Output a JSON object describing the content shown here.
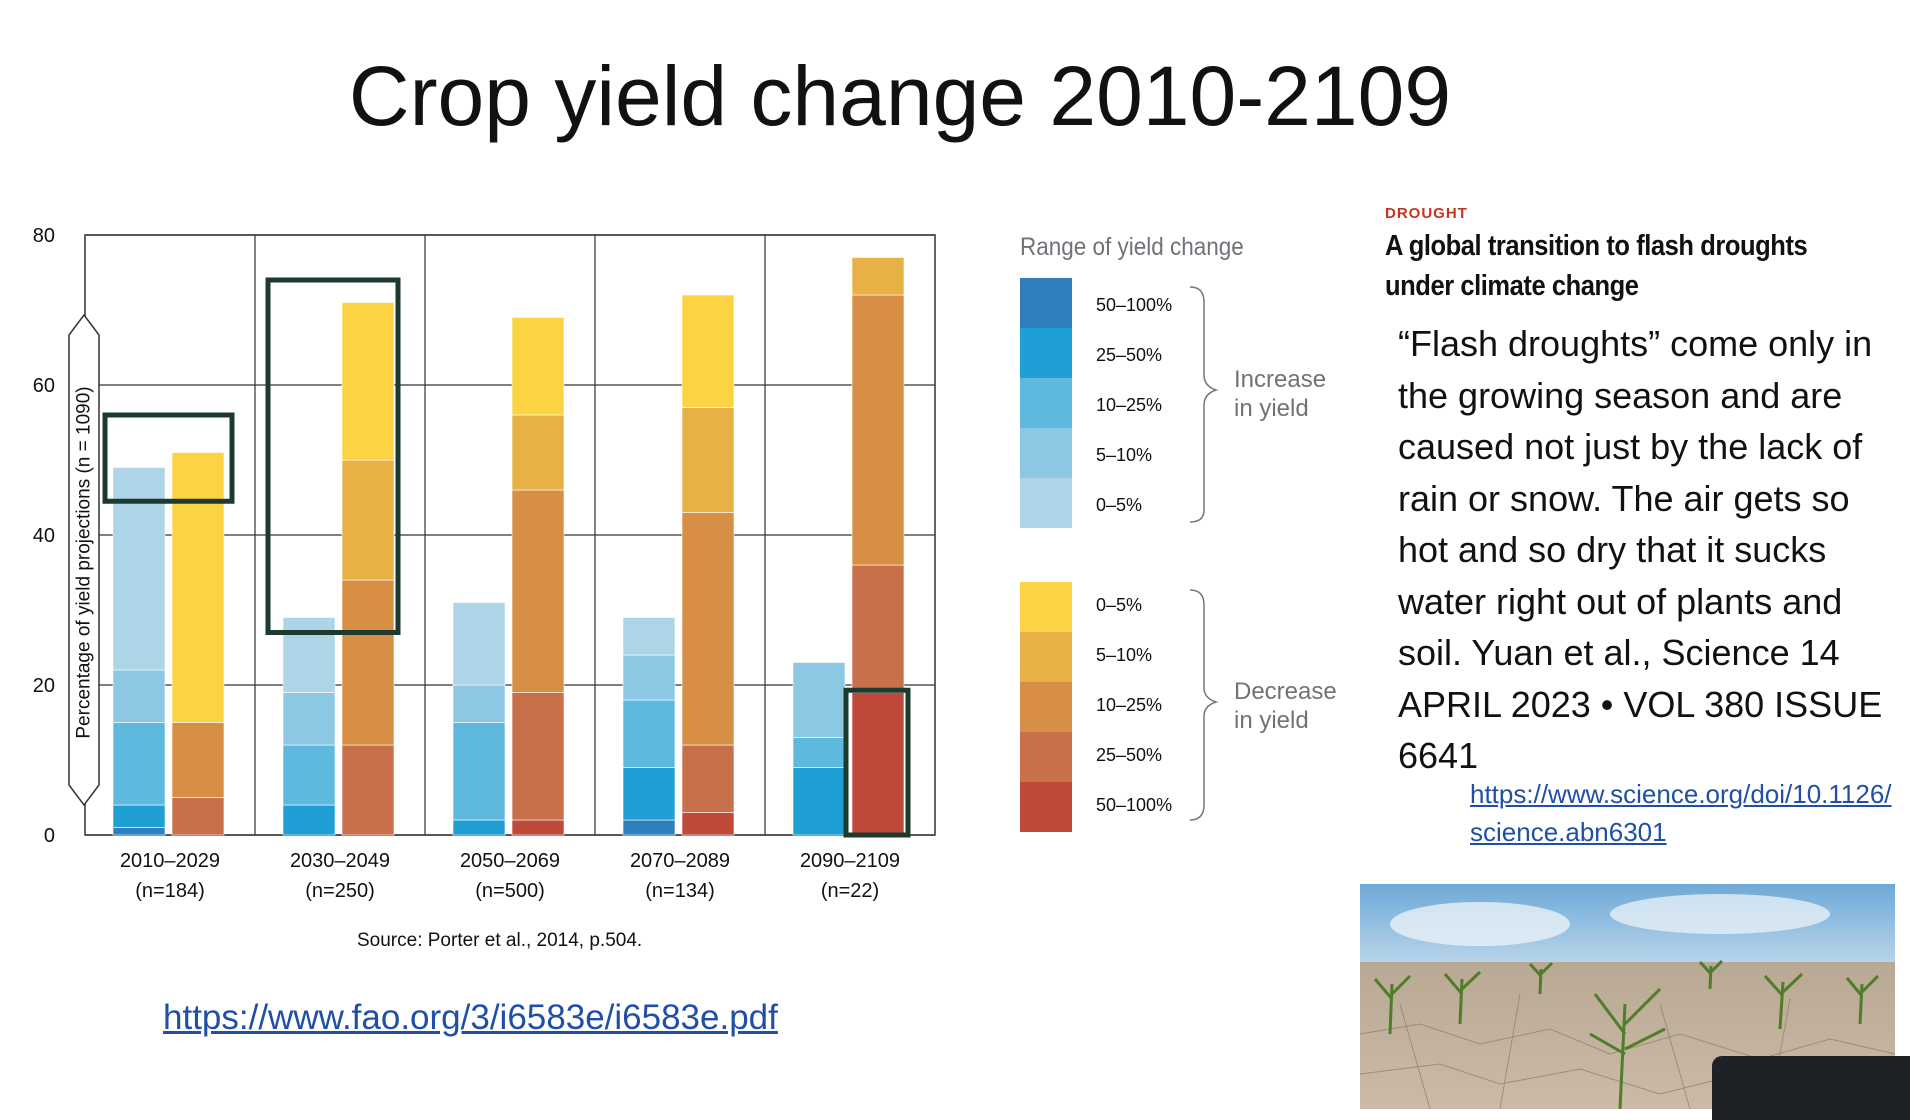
{
  "slide": {
    "title": "Crop yield change 2010-2109",
    "fao_link": "https://www.fao.org/3/i6583e/i6583e.pdf"
  },
  "chart_data": {
    "type": "bar",
    "stacked": true,
    "ylabel": "Percentage of yield projections (n = 1090)",
    "ylim": [
      0,
      80
    ],
    "yticks": [
      0,
      20,
      40,
      60,
      80
    ],
    "grid": true,
    "source": "Source: Porter et al., 2014, p.504.",
    "categories": [
      {
        "period": "2010–2029",
        "n": "(n=184)"
      },
      {
        "period": "2030–2049",
        "n": "(n=250)"
      },
      {
        "period": "2050–2069",
        "n": "(n=500)"
      },
      {
        "period": "2070–2089",
        "n": "(n=134)"
      },
      {
        "period": "2090–2109",
        "n": "(n=22)"
      }
    ],
    "increase_series": [
      {
        "range": "50–100%",
        "color": "#2f7fbf",
        "values": [
          1,
          0,
          0,
          2,
          0
        ]
      },
      {
        "range": "25–50%",
        "color": "#1f9fd4",
        "values": [
          3,
          4,
          2,
          7,
          9
        ]
      },
      {
        "range": "10–25%",
        "color": "#5fb9de",
        "values": [
          11,
          8,
          13,
          9,
          4
        ]
      },
      {
        "range": "5–10%",
        "color": "#8cc8e3",
        "values": [
          7,
          7,
          5,
          6,
          10
        ]
      },
      {
        "range": "0–5%",
        "color": "#aed4e7",
        "values": [
          27,
          10,
          11,
          5,
          0
        ]
      }
    ],
    "decrease_series": [
      {
        "range": "50–100%",
        "color": "#bf4a3a",
        "values": [
          0,
          0,
          2,
          3,
          19
        ]
      },
      {
        "range": "25–50%",
        "color": "#c7704a",
        "values": [
          5,
          12,
          17,
          9,
          17
        ]
      },
      {
        "range": "10–25%",
        "color": "#d78f45",
        "values": [
          10,
          22,
          27,
          31,
          36
        ]
      },
      {
        "range": "5–10%",
        "color": "#e8b146",
        "values": [
          0,
          16,
          10,
          14,
          5
        ]
      },
      {
        "range": "0–5%",
        "color": "#fbd343",
        "values": [
          36,
          21,
          13,
          15,
          0
        ]
      }
    ],
    "legend": {
      "title": "Range of yield change",
      "increase_label": "Increase in yield",
      "decrease_label": "Decrease in yield",
      "increase_items": [
        "50–100%",
        "25–50%",
        "10–25%",
        "5–10%",
        "0–5%"
      ],
      "decrease_items": [
        "0–5%",
        "5–10%",
        "10–25%",
        "25–50%",
        "50–100%"
      ]
    },
    "highlight_color": "#1c3a2e"
  },
  "article": {
    "section": "DROUGHT",
    "title": "A global transition to flash droughts under climate change",
    "body": "“Flash droughts” come only in the growing season and are caused not just by the lack of rain or snow. The air gets so hot and so dry that it sucks water right out of plants and soil. Yuan et al., Science 14 APRIL 2023 • VOL 380 ISSUE 6641",
    "link": "https://www.science.org/doi/10.1126/science.abn6301"
  }
}
